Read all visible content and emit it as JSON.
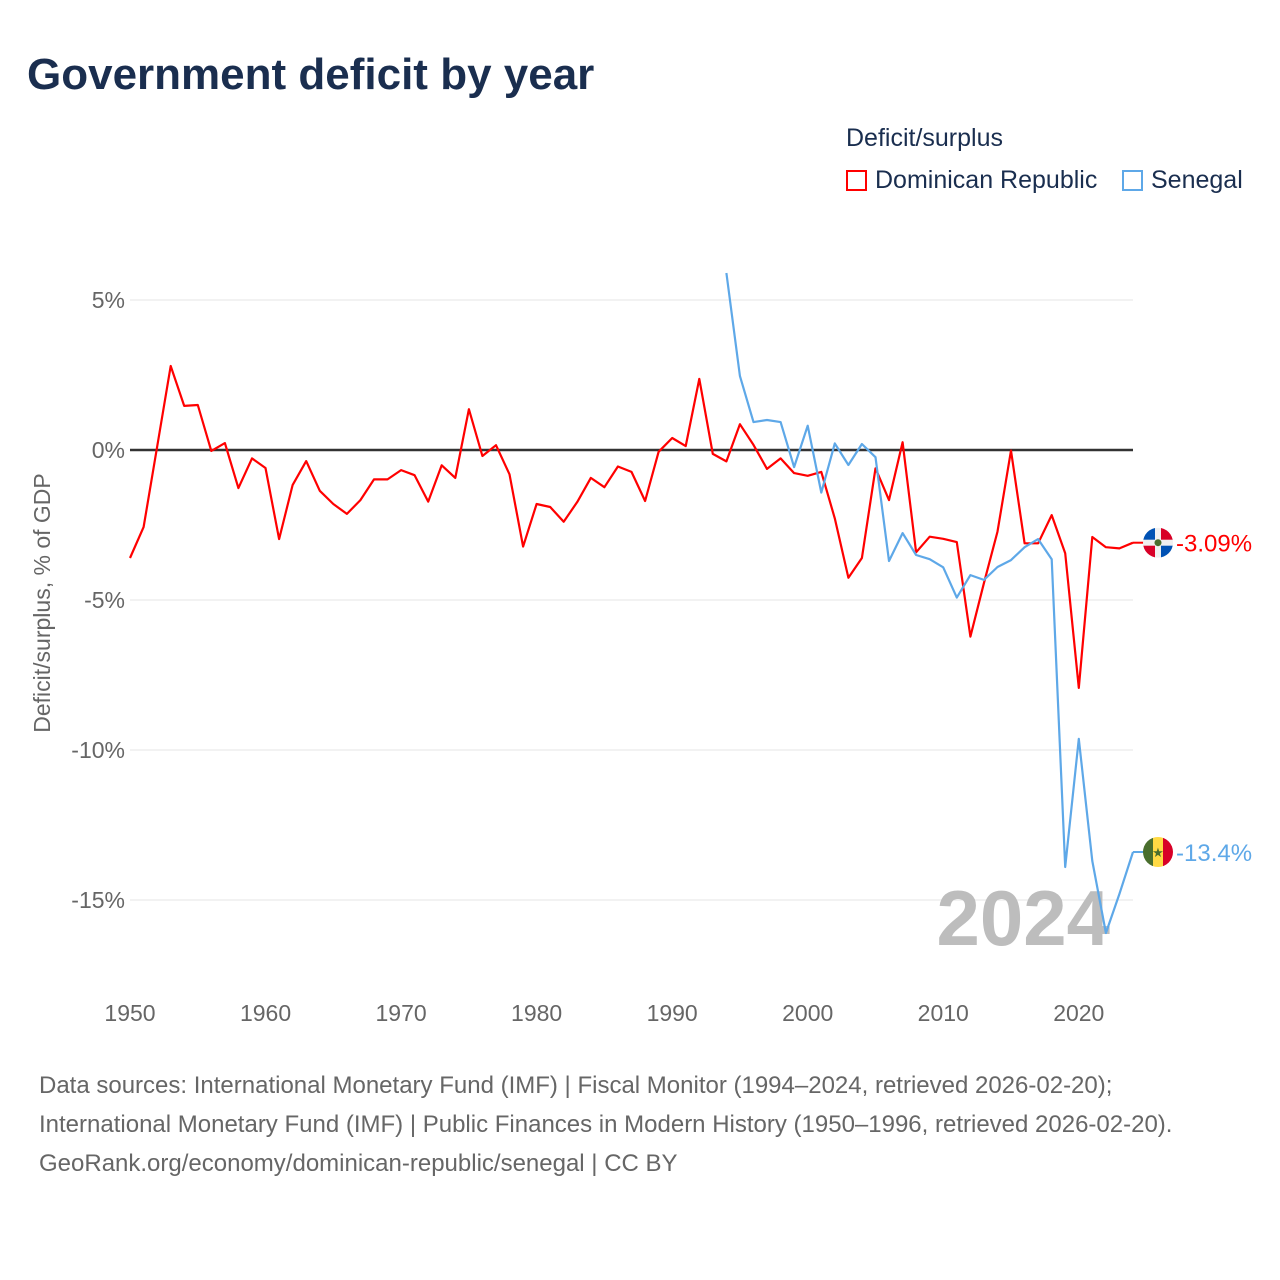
{
  "chart_data": {
    "type": "line",
    "title": "Government deficit by year",
    "ylabel": "Deficit/surplus, % of GDP",
    "xlabel": "",
    "xlim": [
      1950,
      2024
    ],
    "ylim": [
      -17.5,
      6.5
    ],
    "x_ticks": [
      1950,
      1960,
      1970,
      1980,
      1990,
      2000,
      2010,
      2020
    ],
    "y_ticks": [
      {
        "v": 5,
        "label": "5%"
      },
      {
        "v": 0,
        "label": "0%"
      },
      {
        "v": -5,
        "label": "-5%"
      },
      {
        "v": -10,
        "label": "-10%"
      },
      {
        "v": -15,
        "label": "-15%"
      }
    ],
    "legend_title": "Deficit/surplus",
    "legend_position": "top-right",
    "year_watermark": "2024",
    "series": [
      {
        "name": "Dominican Republic",
        "color": "#ff0000",
        "end_label": "-3.09%",
        "start_year": 1950,
        "values": [
          -3.6,
          -2.57,
          0.1,
          2.8,
          1.47,
          1.5,
          -0.03,
          0.23,
          -1.27,
          -0.28,
          -0.6,
          -2.97,
          -1.17,
          -0.37,
          -1.36,
          -1.8,
          -2.13,
          -1.67,
          -0.98,
          -0.98,
          -0.67,
          -0.84,
          -1.72,
          -0.51,
          -0.93,
          1.36,
          -0.2,
          0.16,
          -0.81,
          -3.22,
          -1.8,
          -1.9,
          -2.39,
          -1.73,
          -0.93,
          -1.24,
          -0.55,
          -0.73,
          -1.7,
          -0.06,
          0.4,
          0.13,
          2.37,
          -0.13,
          -0.38,
          0.86,
          0.17,
          -0.63,
          -0.28,
          -0.77,
          -0.86,
          -0.73,
          -2.28,
          -4.26,
          -3.6,
          -0.61,
          -1.67,
          0.26,
          -3.41,
          -2.89,
          -2.96,
          -3.07,
          -6.22,
          -4.44,
          -2.72,
          -0.02,
          -3.11,
          -3.11,
          -2.17,
          -3.44,
          -7.93,
          -2.9,
          -3.24,
          -3.28,
          -3.09
        ]
      },
      {
        "name": "Senegal",
        "color": "#5ea8e8",
        "end_label": "-13.4%",
        "start_year": 1994,
        "values": [
          5.9,
          2.47,
          0.93,
          1.0,
          0.93,
          -0.57,
          0.81,
          -1.42,
          0.22,
          -0.5,
          0.2,
          -0.24,
          -3.7,
          -2.77,
          -3.5,
          -3.64,
          -3.91,
          -4.92,
          -4.17,
          -4.33,
          -3.9,
          -3.67,
          -3.24,
          -2.97,
          -3.64,
          -13.9,
          -9.63,
          -13.7,
          -16.1,
          -14.8,
          -13.4
        ]
      }
    ]
  },
  "footer": {
    "sources": "Data sources: International Monetary Fund (IMF) | Fiscal Monitor (1994–2024, retrieved 2026-02-20); International Monetary Fund (IMF) | Public Finances in Modern History (1950–1996, retrieved 2026-02-20).",
    "credit": "GeoRank.org/economy/dominican-republic/senegal | CC BY"
  }
}
